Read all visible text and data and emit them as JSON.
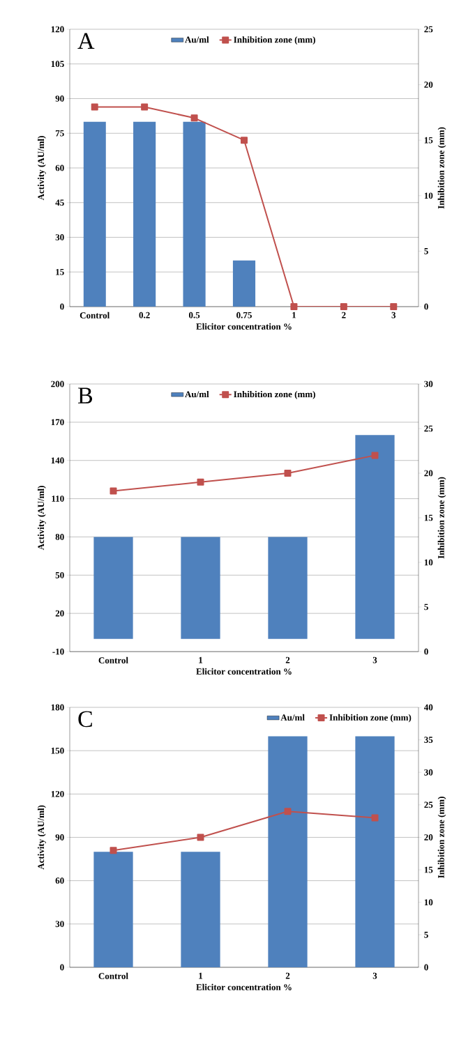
{
  "chart_data": [
    {
      "type": "bar",
      "annotations": [
        "A"
      ],
      "xlabel": "Elicitor  concentration  %",
      "ylabel": "Activity (AU/ml)",
      "y2label": "Inhibition  zone (mm)",
      "categories": [
        "Control",
        "0.2",
        "0.5",
        "0.75",
        "1",
        "2",
        "3"
      ],
      "series": [
        {
          "name": "Au/ml",
          "color": "#4f81bd",
          "values": [
            80,
            80,
            80,
            20,
            0,
            0,
            0
          ]
        },
        {
          "name": "Inhibition zone (mm)",
          "type": "line",
          "axis": "y2",
          "color": "#c0504d",
          "values": [
            18,
            18,
            17,
            15,
            0,
            0,
            0
          ]
        }
      ],
      "ylim": [
        0,
        120
      ],
      "yticks": [
        0,
        15,
        30,
        45,
        60,
        75,
        90,
        105,
        120
      ],
      "y2lim": [
        0,
        25
      ],
      "y2ticks": [
        0,
        5,
        10,
        15,
        20,
        25
      ],
      "grid": "y",
      "legend": "top",
      "marker": "square",
      "line_style": "solid"
    },
    {
      "type": "bar",
      "annotations": [
        "B"
      ],
      "xlabel": "Elicitor  concentration  %",
      "ylabel": "Activity (AU/ml)",
      "y2label": "Inhibition  zone (mm)",
      "categories": [
        "Control",
        "1",
        "2",
        "3"
      ],
      "series": [
        {
          "name": "Au/ml",
          "color": "#4f81bd",
          "values": [
            80,
            80,
            80,
            160
          ]
        },
        {
          "name": "Inhibition zone (mm)",
          "type": "line",
          "axis": "y2",
          "color": "#c0504d",
          "values": [
            18,
            19,
            20,
            22
          ]
        }
      ],
      "ylim": [
        -10,
        200
      ],
      "yticks": [
        -10,
        20,
        50,
        80,
        110,
        140,
        170,
        200
      ],
      "y2lim": [
        0,
        30
      ],
      "y2ticks": [
        0,
        5,
        10,
        15,
        20,
        25,
        30
      ],
      "grid": "y",
      "legend": "top",
      "marker": "square",
      "line_style": "solid"
    },
    {
      "type": "bar",
      "annotations": [
        "C"
      ],
      "xlabel": "Elicitor  concentration  %",
      "ylabel": "Activity (AU/ml)",
      "y2label": "Inhibition  zone (mm)",
      "categories": [
        "Control",
        "1",
        "2",
        "3"
      ],
      "series": [
        {
          "name": "Au/ml",
          "color": "#4f81bd",
          "values": [
            80,
            80,
            160,
            160
          ]
        },
        {
          "name": "Inhibition zone (mm)",
          "type": "line",
          "axis": "y2",
          "color": "#c0504d",
          "values": [
            18,
            20,
            24,
            23
          ]
        }
      ],
      "ylim": [
        0,
        180
      ],
      "yticks": [
        0,
        30,
        60,
        90,
        120,
        150,
        180
      ],
      "y2lim": [
        0,
        40
      ],
      "y2ticks": [
        0,
        5,
        10,
        15,
        20,
        25,
        30,
        35,
        40
      ],
      "grid": "y",
      "legend": "top right",
      "marker": "square",
      "line_style": "solid"
    }
  ]
}
